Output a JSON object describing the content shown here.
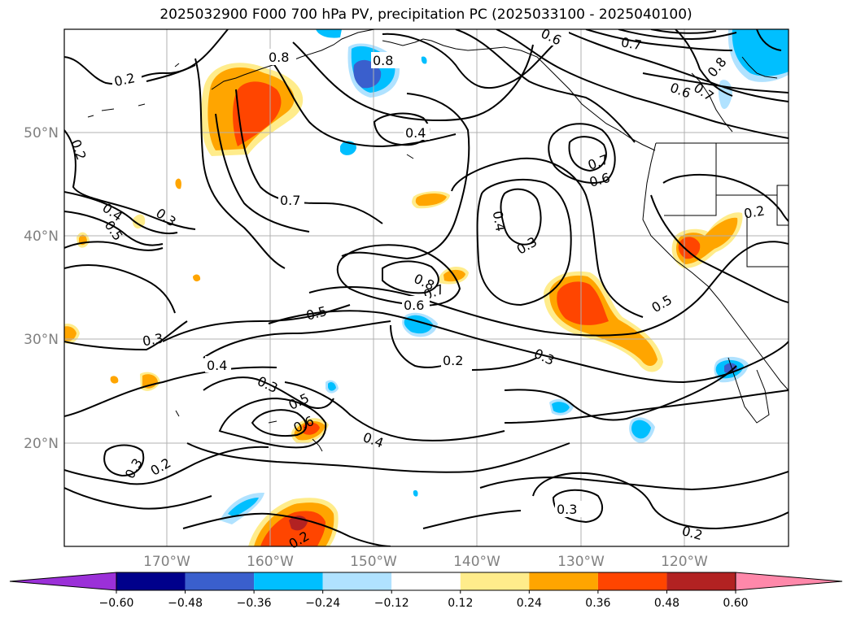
{
  "title": "2025032900 F000 700 hPa PV, precipitation PC (2025033100 - 2025040100)",
  "map": {
    "lon_range": [
      -180,
      -110
    ],
    "lat_range": [
      10,
      60
    ],
    "lat_labels": [
      "50°N",
      "40°N",
      "30°N",
      "20°N"
    ],
    "lon_labels": [
      "170°W",
      "160°W",
      "150°W",
      "140°W",
      "130°W",
      "120°W"
    ],
    "gridlines": true
  },
  "colorbar": {
    "tick_labels": [
      "−0.60",
      "−0.48",
      "−0.36",
      "−0.24",
      "−0.12",
      "0.12",
      "0.24",
      "0.36",
      "0.48",
      "0.60"
    ],
    "colors": [
      "#9b30d8",
      "#00008b",
      "#3a5fcd",
      "#00bfff",
      "#b0e2ff",
      "#ffffff",
      "#ffec8b",
      "#ffa500",
      "#ff4500",
      "#b22222",
      "#ff88aa"
    ],
    "extend": "both"
  },
  "contour_labels": [
    "0.2",
    "0.8",
    "0.8",
    "0.6",
    "0.7",
    "0.8",
    "0.7",
    "0.6",
    "0.2",
    "0.4",
    "0.5",
    "0.3",
    "0.4",
    "0.7",
    "0.7",
    "0.6",
    "0.4",
    "0.3",
    "0.2",
    "0.8",
    "0.7",
    "0.6",
    "0.5",
    "0.5",
    "0.3",
    "0.4",
    "0.2",
    "0.3",
    "0.3",
    "0.5",
    "0.6",
    "0.4",
    "0.3",
    "0.2",
    "0.3",
    "0.2",
    "0.2"
  ],
  "colors": {
    "contour": "#000000",
    "grid": "#b0b0b0",
    "coast": "#000000"
  }
}
